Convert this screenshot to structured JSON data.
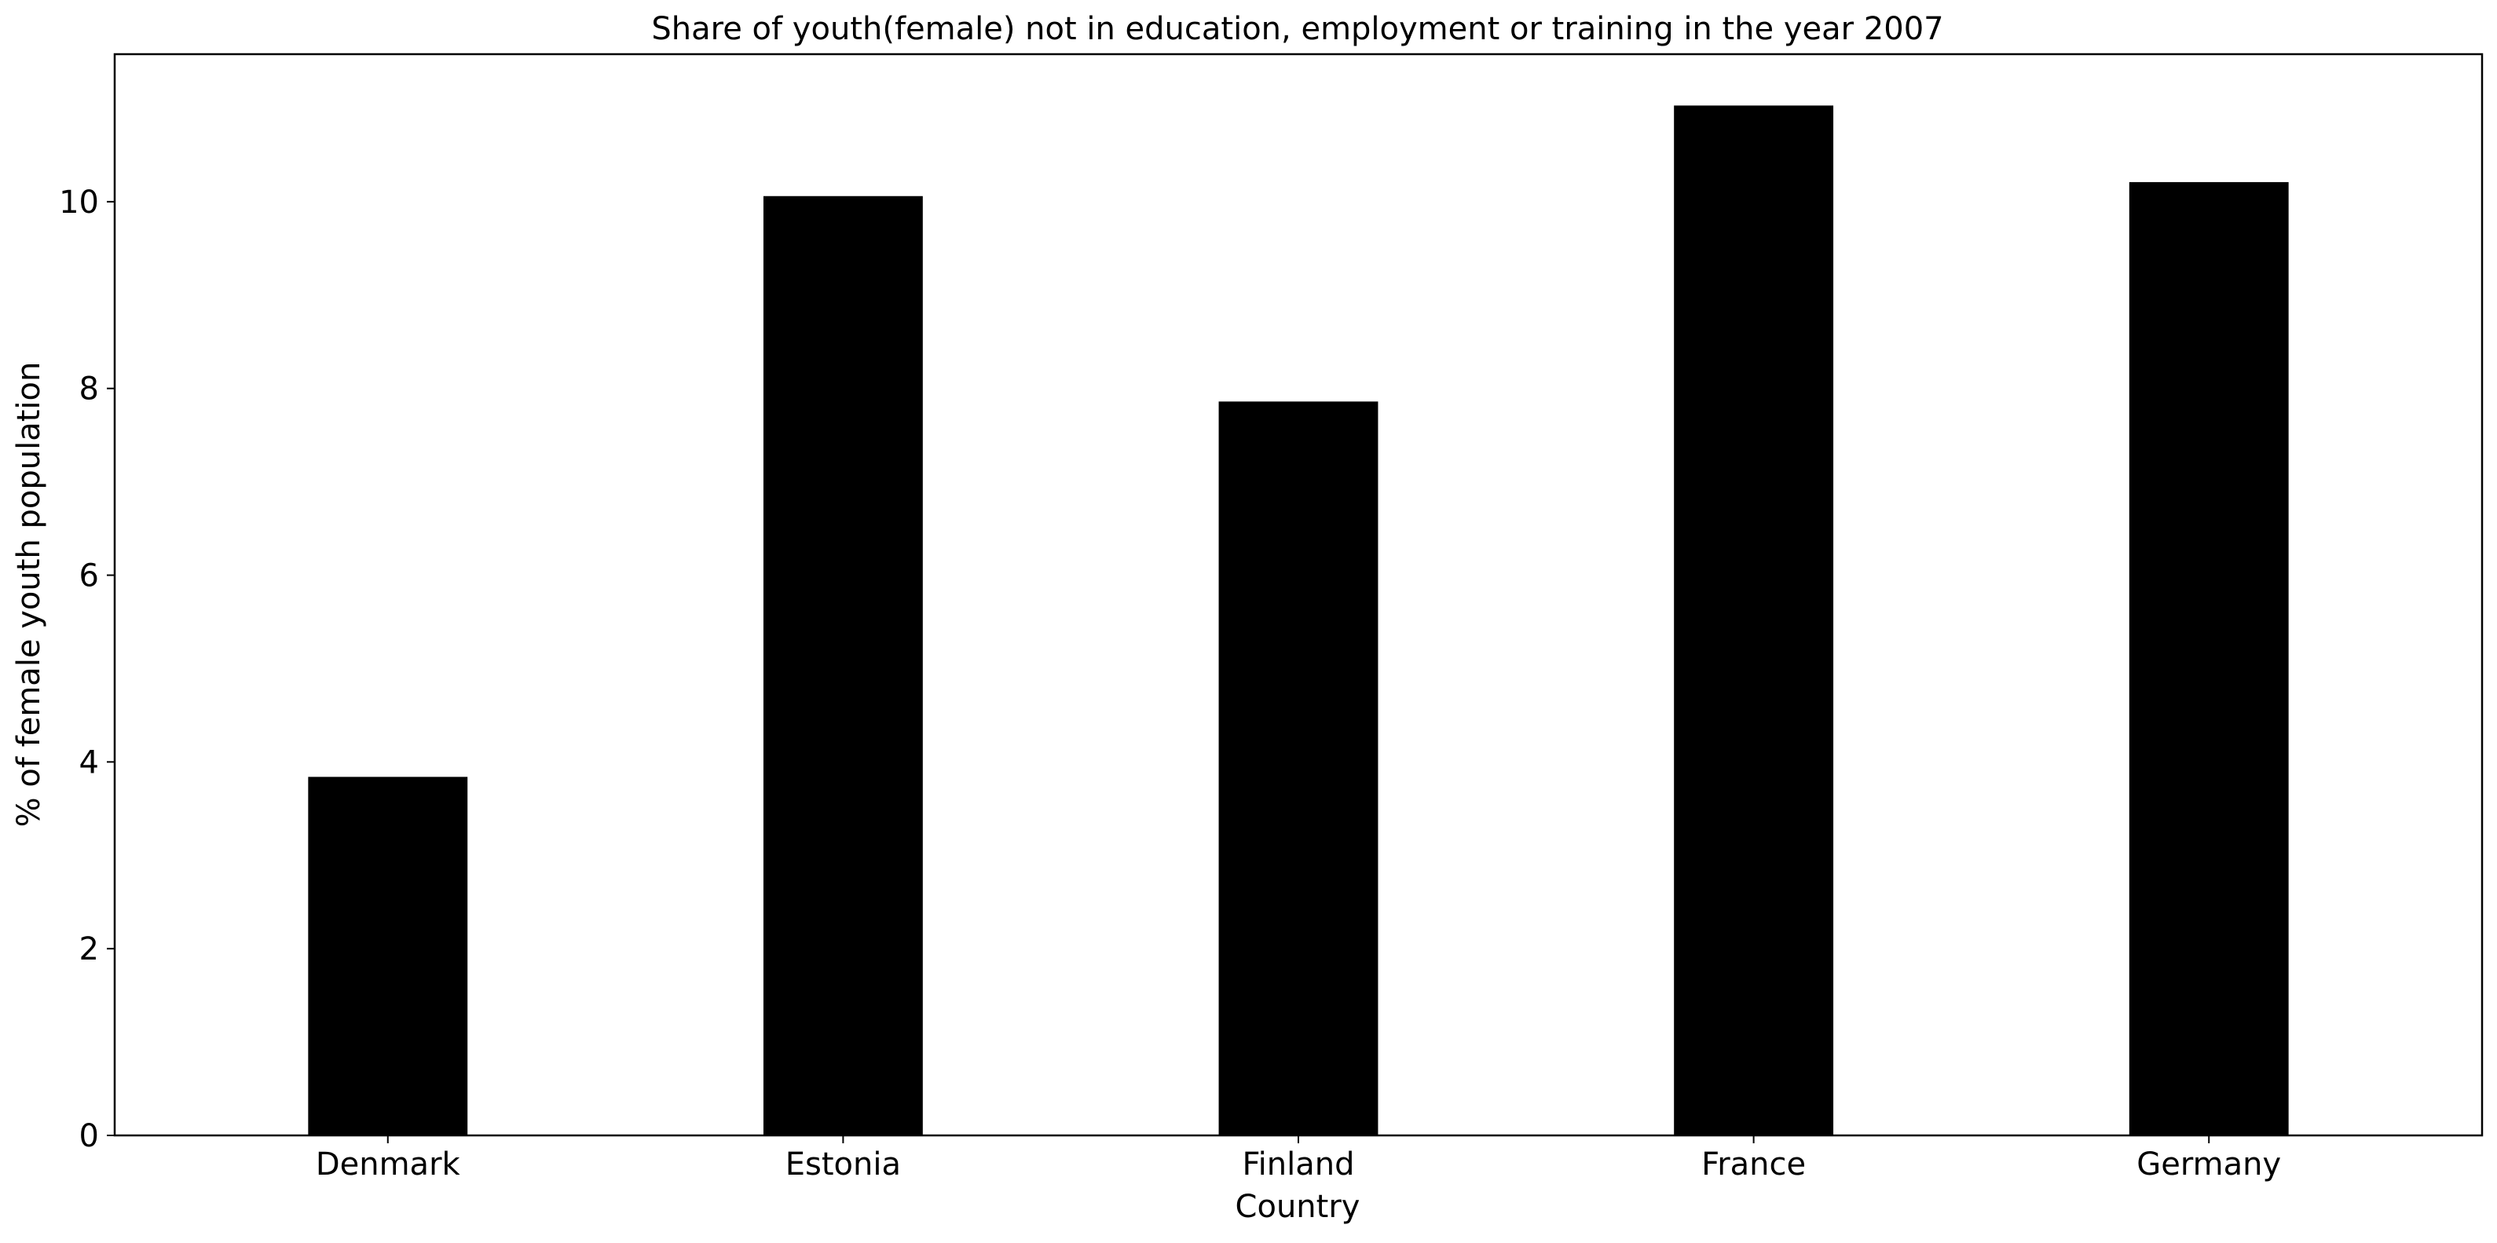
{
  "chart_data": {
    "type": "bar",
    "title": "Share of youth(female) not in education, employment or training in the year 2007",
    "xlabel": "Country",
    "ylabel": "% of female youth population",
    "categories": [
      "Denmark",
      "Estonia",
      "Finland",
      "France",
      "Germany"
    ],
    "values": [
      3.84,
      10.06,
      7.86,
      11.03,
      10.21
    ],
    "ylim": [
      0,
      11.58
    ],
    "yticks": [
      0,
      2,
      4,
      6,
      8,
      10
    ],
    "grid": false,
    "legend": "none",
    "bar_color": "#000000"
  }
}
